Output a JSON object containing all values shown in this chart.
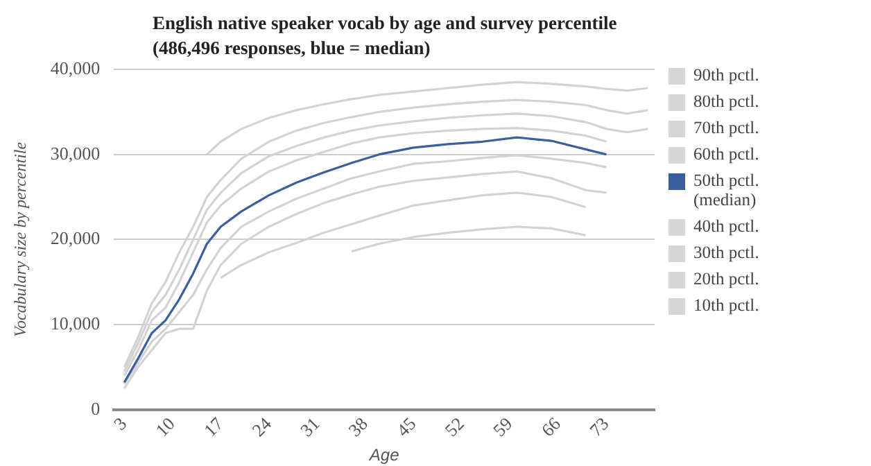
{
  "chart_data": {
    "type": "line",
    "title": "English native speaker vocab by age and survey percentile (486,496 responses, blue = median)",
    "xlabel": "Age",
    "ylabel": "Vocabulary size by percentile",
    "x": [
      3,
      5,
      7,
      9,
      11,
      13,
      15,
      17,
      20,
      24,
      28,
      32,
      36,
      40,
      45,
      50,
      55,
      60,
      65,
      70,
      73,
      76,
      79
    ],
    "xlim": [
      1.5,
      80
    ],
    "xticks": [
      3,
      10,
      17,
      24,
      31,
      38,
      45,
      52,
      59,
      66,
      73
    ],
    "ylim": [
      0,
      40000
    ],
    "yticks": [
      0,
      {
        "value": 10000,
        "label": "10,000"
      },
      {
        "value": 20000,
        "label": "20,000"
      },
      {
        "value": 30000,
        "label": "30,000"
      },
      {
        "value": 40000,
        "label": "40,000"
      }
    ],
    "grid": "y",
    "legend": "right",
    "marker": "none",
    "line_style": "solid",
    "series": [
      {
        "name": "90th pctl.",
        "color": "#d3d3d3",
        "values": [
          null,
          null,
          null,
          null,
          null,
          null,
          30000,
          31500,
          33000,
          34300,
          35200,
          35900,
          36500,
          37000,
          37400,
          37800,
          38200,
          38500,
          38300,
          38000,
          37700,
          37500,
          37800
        ]
      },
      {
        "name": "80th pctl.",
        "color": "#d3d3d3",
        "values": [
          5000,
          8500,
          12500,
          15000,
          18500,
          21500,
          25000,
          27000,
          29500,
          31500,
          32800,
          33700,
          34400,
          35000,
          35500,
          35900,
          36200,
          36400,
          36200,
          35800,
          35200,
          34800,
          35200
        ]
      },
      {
        "name": "70th pctl.",
        "color": "#d3d3d3",
        "values": [
          4500,
          7800,
          11500,
          13500,
          16500,
          20000,
          23500,
          25500,
          27800,
          29800,
          31000,
          32000,
          32800,
          33400,
          33900,
          34300,
          34600,
          34800,
          34500,
          33800,
          33000,
          32600,
          33000
        ]
      },
      {
        "name": "60th pctl.",
        "color": "#d3d3d3",
        "values": [
          4000,
          7000,
          10500,
          12000,
          15000,
          18500,
          22000,
          24000,
          26000,
          28000,
          29300,
          30300,
          31300,
          32000,
          32500,
          32800,
          33000,
          33100,
          32800,
          32200,
          31500,
          null,
          null
        ]
      },
      {
        "name": "50th pctl. (median)",
        "color": "#3a5f9e",
        "values": [
          3200,
          6000,
          9000,
          10500,
          13000,
          16000,
          19500,
          21500,
          23300,
          25200,
          26700,
          27900,
          29000,
          30000,
          30800,
          31200,
          31500,
          32000,
          31600,
          30600,
          30000,
          null,
          null
        ]
      },
      {
        "name": "40th pctl.",
        "color": "#d3d3d3",
        "values": [
          3000,
          5500,
          8000,
          9500,
          11500,
          13500,
          16500,
          19000,
          21500,
          23300,
          24800,
          26000,
          27200,
          28000,
          28900,
          29200,
          29600,
          29900,
          29500,
          29000,
          28500,
          null,
          null
        ]
      },
      {
        "name": "30th pctl.",
        "color": "#d3d3d3",
        "values": [
          2500,
          5000,
          7000,
          9000,
          9500,
          9500,
          14000,
          17000,
          19500,
          21500,
          23000,
          24300,
          25300,
          26200,
          26900,
          27300,
          27700,
          28000,
          27200,
          25800,
          25500,
          null,
          null
        ]
      },
      {
        "name": "20th pctl.",
        "color": "#d3d3d3",
        "values": [
          null,
          null,
          null,
          null,
          null,
          null,
          null,
          15500,
          17000,
          18500,
          19600,
          20800,
          21800,
          22800,
          24000,
          24600,
          25200,
          25500,
          25000,
          23800,
          null,
          null,
          null
        ]
      },
      {
        "name": "10th pctl.",
        "color": "#d3d3d3",
        "values": [
          null,
          null,
          null,
          null,
          null,
          null,
          null,
          null,
          null,
          null,
          null,
          null,
          18600,
          19500,
          20300,
          20800,
          21200,
          21500,
          21300,
          20500,
          null,
          null,
          null
        ]
      }
    ]
  }
}
